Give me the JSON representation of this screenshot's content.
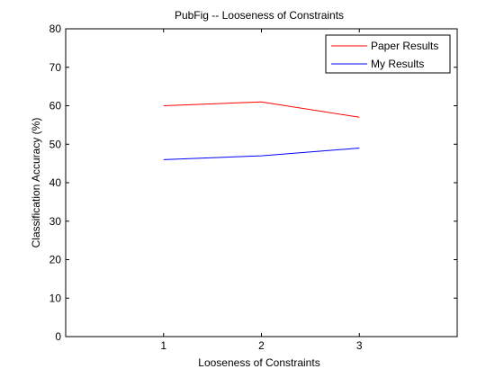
{
  "chart_data": {
    "type": "line",
    "title": "PubFig -- Looseness of Constraints",
    "xlabel": "Looseness of Constraints",
    "ylabel": "Classification Accuracy (%)",
    "xlim": [
      0,
      4
    ],
    "ylim": [
      0,
      80
    ],
    "xticks": [
      1,
      2,
      3
    ],
    "yticks": [
      0,
      10,
      20,
      30,
      40,
      50,
      60,
      70,
      80
    ],
    "x": [
      1,
      2,
      3
    ],
    "series": [
      {
        "name": "Paper Results",
        "values": [
          60,
          61,
          57
        ],
        "color": "#ff0000"
      },
      {
        "name": "My Results",
        "values": [
          46,
          47,
          49
        ],
        "color": "#0000ff"
      }
    ],
    "legend": "top-right",
    "grid": false
  }
}
